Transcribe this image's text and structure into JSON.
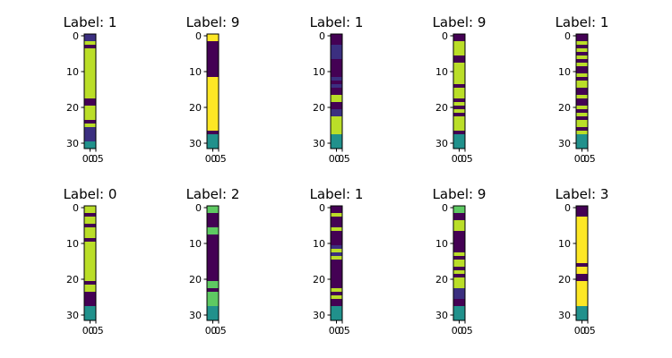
{
  "chart_data": {
    "type": "heatmap",
    "colormap": "viridis",
    "colors": {
      "dark": "#440154",
      "mid_dark": "#3b2f80",
      "teal": "#21918c",
      "green": "#5ec962",
      "yellow_green": "#bade28",
      "yellow": "#fde725"
    },
    "xlim": [
      -0.5,
      0.5
    ],
    "ylim": [
      31.5,
      -0.5
    ],
    "y_ticks": [
      "0",
      "10",
      "20",
      "30"
    ],
    "x_ticks": [
      "0.0",
      "0.5"
    ],
    "panels": [
      {
        "title": "Label: 1",
        "rows": [
          1,
          1,
          2,
          0,
          2,
          2,
          2,
          2,
          2,
          2,
          2,
          2,
          2,
          2,
          2,
          2,
          2,
          2,
          0,
          0,
          2,
          2,
          2,
          2,
          0,
          2,
          1,
          1,
          1,
          1,
          3,
          3
        ]
      },
      {
        "title": "Label: 9",
        "rows": [
          5,
          5,
          0,
          0,
          0,
          0,
          0,
          0,
          0,
          0,
          0,
          0,
          5,
          5,
          5,
          5,
          5,
          5,
          5,
          5,
          5,
          5,
          5,
          5,
          5,
          5,
          5,
          0,
          3,
          3,
          3,
          3
        ]
      },
      {
        "title": "Label: 1",
        "rows": [
          0,
          0,
          0,
          1,
          1,
          1,
          1,
          0,
          0,
          0,
          0,
          0,
          1,
          0,
          1,
          0,
          0,
          2,
          2,
          0,
          0,
          1,
          1,
          2,
          2,
          2,
          2,
          2,
          3,
          3,
          3,
          3
        ]
      },
      {
        "title": "Label: 9",
        "rows": [
          0,
          0,
          2,
          2,
          2,
          2,
          0,
          0,
          2,
          2,
          2,
          2,
          2,
          2,
          0,
          2,
          2,
          2,
          0,
          2,
          0,
          2,
          0,
          2,
          2,
          2,
          2,
          0,
          3,
          3,
          3,
          3
        ]
      },
      {
        "title": "Label: 1",
        "rows": [
          0,
          0,
          2,
          0,
          2,
          0,
          2,
          0,
          2,
          0,
          0,
          2,
          0,
          2,
          2,
          0,
          0,
          2,
          0,
          0,
          2,
          0,
          2,
          0,
          2,
          2,
          0,
          2,
          3,
          3,
          3,
          3
        ]
      },
      {
        "title": "Label: 0",
        "rows": [
          2,
          2,
          0,
          2,
          2,
          0,
          2,
          2,
          2,
          0,
          2,
          2,
          2,
          2,
          2,
          2,
          2,
          2,
          2,
          2,
          2,
          0,
          2,
          2,
          0,
          0,
          0,
          0,
          3,
          3,
          3,
          3
        ]
      },
      {
        "title": "Label: 2",
        "rows": [
          4,
          4,
          0,
          0,
          0,
          0,
          4,
          4,
          0,
          0,
          0,
          0,
          0,
          0,
          0,
          0,
          0,
          0,
          0,
          0,
          0,
          4,
          4,
          0,
          4,
          4,
          4,
          4,
          3,
          3,
          3,
          3
        ]
      },
      {
        "title": "Label: 1",
        "rows": [
          0,
          0,
          2,
          0,
          0,
          0,
          2,
          0,
          0,
          0,
          0,
          1,
          2,
          1,
          2,
          0,
          0,
          0,
          0,
          0,
          0,
          0,
          0,
          2,
          0,
          2,
          0,
          0,
          3,
          3,
          3,
          3
        ]
      },
      {
        "title": "Label: 9",
        "rows": [
          4,
          4,
          0,
          0,
          2,
          2,
          2,
          0,
          0,
          0,
          0,
          0,
          0,
          2,
          0,
          2,
          2,
          0,
          2,
          0,
          2,
          2,
          2,
          1,
          1,
          1,
          0,
          0,
          3,
          3,
          3,
          3
        ]
      },
      {
        "title": "Label: 3",
        "rows": [
          0,
          0,
          0,
          5,
          5,
          5,
          5,
          5,
          5,
          5,
          5,
          5,
          5,
          5,
          5,
          5,
          0,
          5,
          5,
          0,
          0,
          5,
          5,
          5,
          5,
          5,
          5,
          5,
          3,
          3,
          3,
          3
        ]
      }
    ]
  }
}
